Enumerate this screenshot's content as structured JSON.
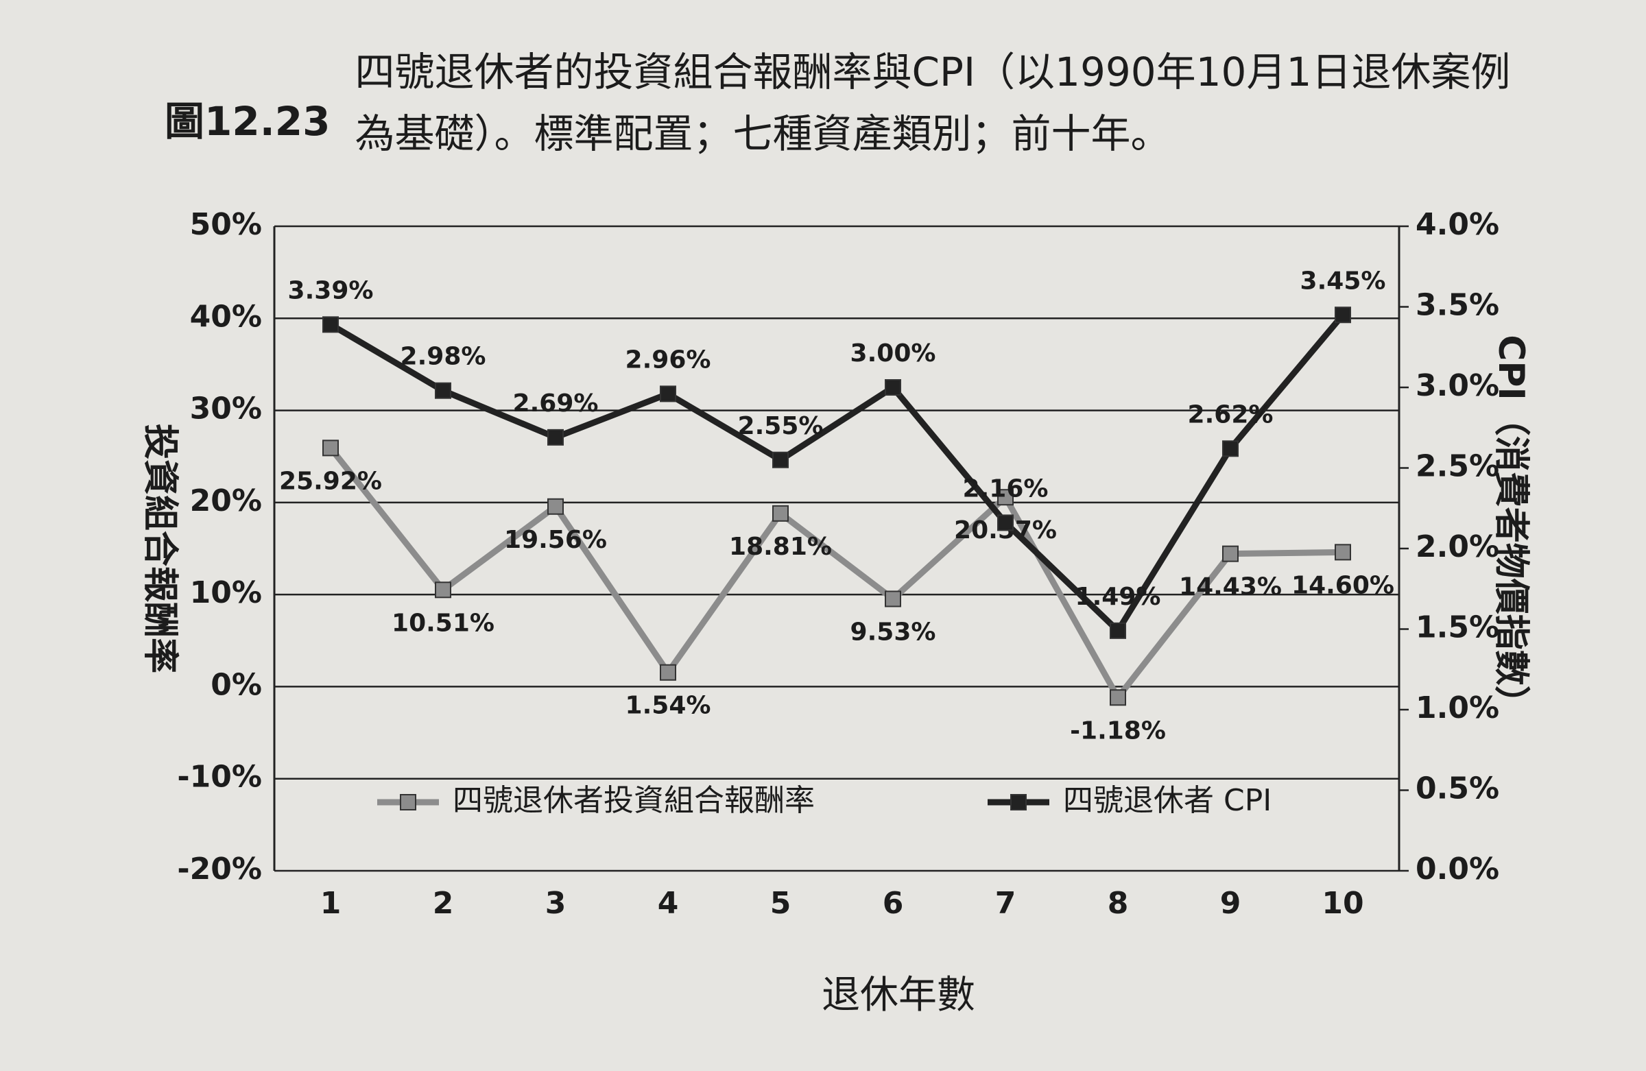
{
  "chart_data": {
    "type": "line",
    "figure_label": "圖12.23",
    "title": "四號退休者的投資組合報酬率與CPI（以1990年10月1日退休案例為基礎）。標準配置；七種資產類別；前十年。",
    "xlabel": "退休年數",
    "ylabel": "投資組合報酬率",
    "y2label": "CPI（消費者物價指數）",
    "categories": [
      "1",
      "2",
      "3",
      "4",
      "5",
      "6",
      "7",
      "8",
      "9",
      "10"
    ],
    "series": [
      {
        "name": "四號退休者投資組合報酬率",
        "color": "#8c8c8c",
        "values": [
          25.92,
          10.51,
          19.56,
          1.54,
          18.81,
          9.53,
          20.57,
          -1.18,
          14.43,
          14.6
        ],
        "value_labels": [
          "25.92%",
          "10.51%",
          "19.56%",
          "1.54%",
          "18.81%",
          "9.53%",
          "20.57%",
          "-1.18%",
          "14.43%",
          "14.60%"
        ]
      },
      {
        "name": "四號退休者 CPI",
        "color": "#222222",
        "axis": "y2",
        "values": [
          3.39,
          2.98,
          2.69,
          2.96,
          2.55,
          3.0,
          2.16,
          1.49,
          2.62,
          3.45
        ],
        "value_labels": [
          "3.39%",
          "2.98%",
          "2.69%",
          "2.96%",
          "2.55%",
          "3.00%",
          "2.16%",
          "1.49%",
          "2.62%",
          "3.45%"
        ]
      }
    ],
    "ylim": [
      -20,
      50
    ],
    "yticks": [
      {
        "value": -20,
        "label": "-20%"
      },
      {
        "value": -10,
        "label": "-10%"
      },
      {
        "value": 0,
        "label": "0%"
      },
      {
        "value": 10,
        "label": "10%"
      },
      {
        "value": 20,
        "label": "20%"
      },
      {
        "value": 30,
        "label": "30%"
      },
      {
        "value": 40,
        "label": "40%"
      },
      {
        "value": 50,
        "label": "50%"
      }
    ],
    "y2lim": [
      0,
      4
    ],
    "y2ticks": [
      {
        "value": 0,
        "label": "0.0%"
      },
      {
        "value": 0.5,
        "label": "0.5%"
      },
      {
        "value": 1,
        "label": "1.0%"
      },
      {
        "value": 1.5,
        "label": "1.5%"
      },
      {
        "value": 2,
        "label": "2.0%"
      },
      {
        "value": 2.5,
        "label": "2.5%"
      },
      {
        "value": 3,
        "label": "3.0%"
      },
      {
        "value": 3.5,
        "label": "3.5%"
      },
      {
        "value": 4,
        "label": "4.0%"
      }
    ],
    "grid": true
  }
}
